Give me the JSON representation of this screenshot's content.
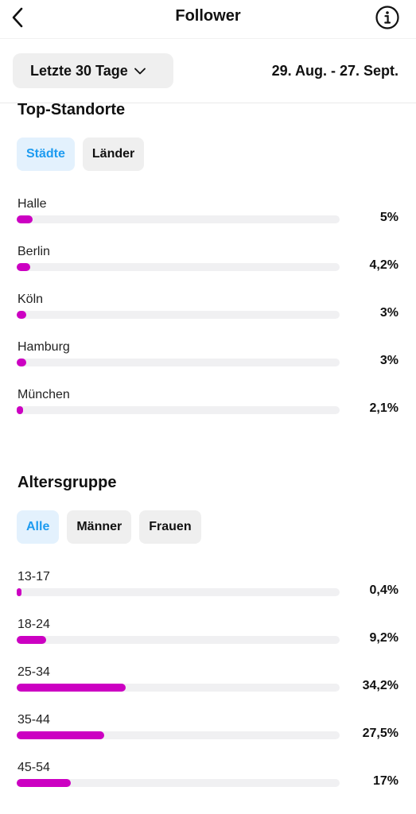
{
  "header": {
    "title": "Follower"
  },
  "filter": {
    "range_label": "Letzte 30 Tage",
    "date_range": "29. Aug. - 27. Sept."
  },
  "locations": {
    "title": "Top-Standorte",
    "tabs": [
      {
        "label": "Städte",
        "active": true
      },
      {
        "label": "Länder",
        "active": false
      }
    ],
    "items": [
      {
        "label": "Halle",
        "percent_text": "5%",
        "value": 5
      },
      {
        "label": "Berlin",
        "percent_text": "4,2%",
        "value": 4.2
      },
      {
        "label": "Köln",
        "percent_text": "3%",
        "value": 3
      },
      {
        "label": "Hamburg",
        "percent_text": "3%",
        "value": 3
      },
      {
        "label": "München",
        "percent_text": "2,1%",
        "value": 2.1
      }
    ]
  },
  "age": {
    "title": "Altersgruppe",
    "tabs": [
      {
        "label": "Alle",
        "active": true
      },
      {
        "label": "Männer",
        "active": false
      },
      {
        "label": "Frauen",
        "active": false
      }
    ],
    "items": [
      {
        "label": "13-17",
        "percent_text": "0,4%",
        "value": 0.4
      },
      {
        "label": "18-24",
        "percent_text": "9,2%",
        "value": 9.2
      },
      {
        "label": "25-34",
        "percent_text": "34,2%",
        "value": 34.2
      },
      {
        "label": "35-44",
        "percent_text": "27,5%",
        "value": 27.5
      },
      {
        "label": "45-54",
        "percent_text": "17%",
        "value": 17
      }
    ]
  },
  "colors": {
    "bar": "#cc00c2",
    "active_tab_text": "#1d9bf0",
    "active_tab_bg": "#e3f1fd"
  }
}
